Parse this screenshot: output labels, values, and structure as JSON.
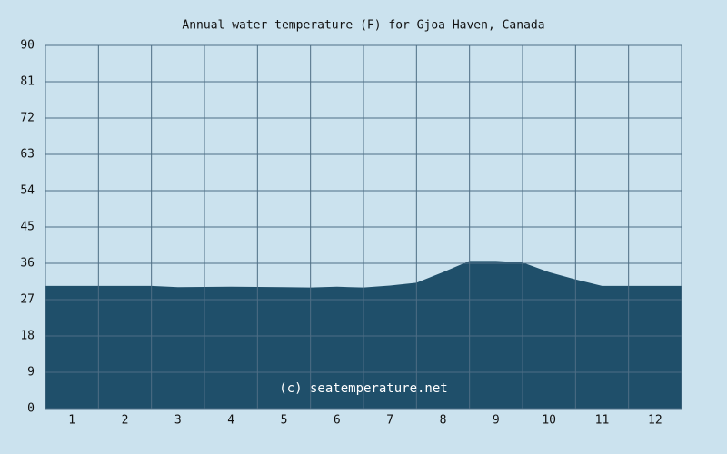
{
  "chart_data": {
    "type": "area",
    "title": "Annual water temperature (F) for Gjoa Haven, Canada",
    "annotation": "(c) seatemperature.net",
    "x": [
      0.5,
      1,
      2,
      2.5,
      3,
      4,
      5,
      5.5,
      6,
      6.5,
      7,
      7.5,
      8,
      8.5,
      9,
      9.5,
      10,
      10.5,
      11,
      12,
      12.5
    ],
    "values": [
      30.4,
      30.4,
      30.4,
      30.4,
      30.1,
      30.2,
      30.1,
      30.0,
      30.2,
      30.0,
      30.5,
      31.2,
      33.8,
      36.6,
      36.6,
      36.2,
      33.8,
      32.0,
      30.4,
      30.4,
      30.4
    ],
    "color": "#1f4f6a",
    "xlim": [
      0.5,
      12.5
    ],
    "xticks": [
      1,
      2,
      3,
      4,
      5,
      6,
      7,
      8,
      9,
      10,
      11,
      12
    ],
    "ylim": [
      0,
      90
    ],
    "yticks": [
      0,
      9,
      18,
      27,
      36,
      45,
      54,
      63,
      72,
      81,
      90
    ],
    "grid": true
  }
}
